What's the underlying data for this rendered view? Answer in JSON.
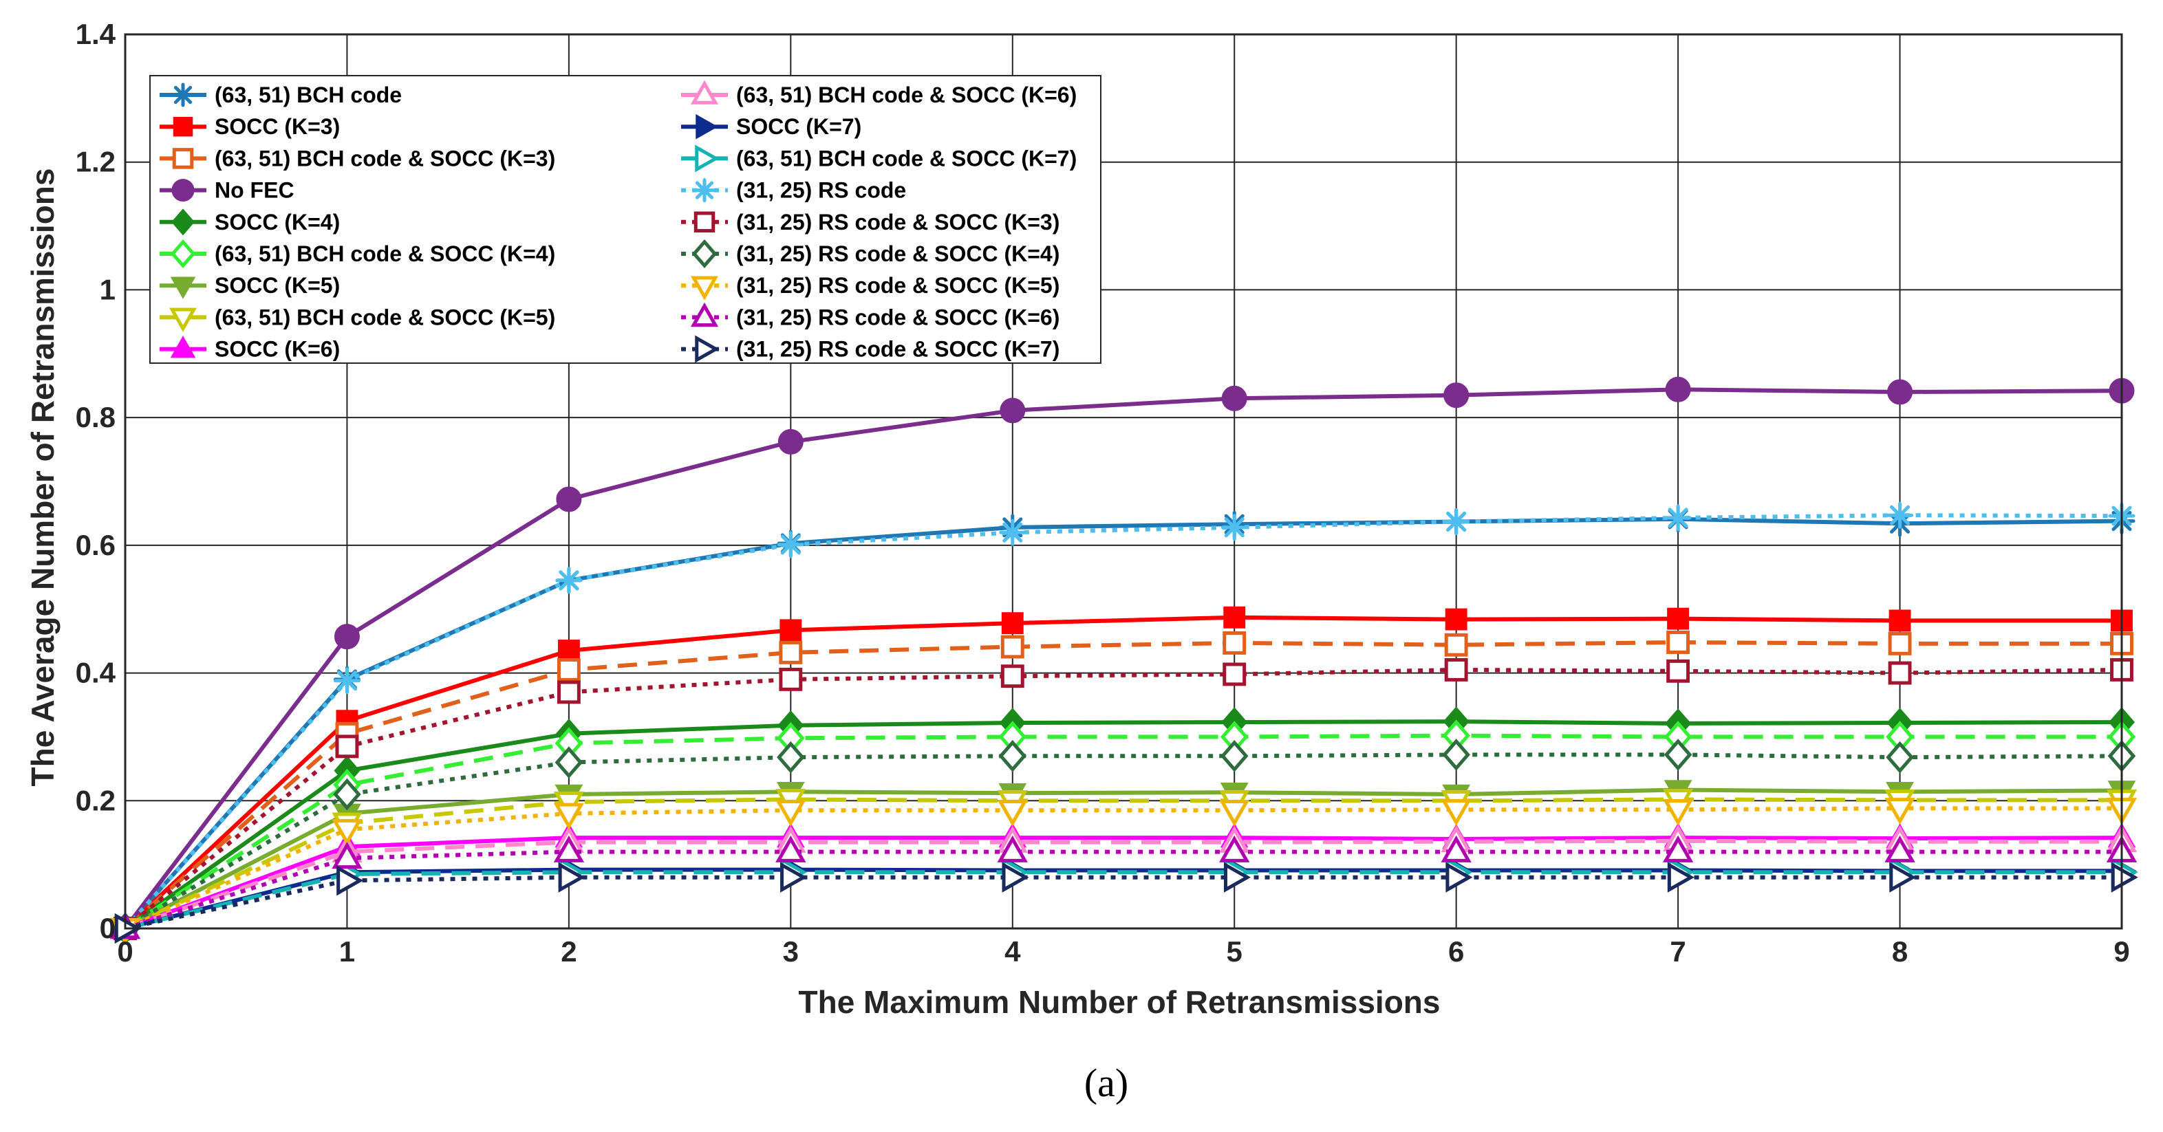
{
  "chart_data": {
    "type": "line",
    "caption": "(a)",
    "xlabel": "The Maximum Number of Retransmissions",
    "ylabel": "The Average Number of Retransmissions",
    "xlim": [
      0,
      9
    ],
    "ylim": [
      0,
      1.4
    ],
    "xticks": [
      0,
      1,
      2,
      3,
      4,
      5,
      6,
      7,
      8,
      9
    ],
    "yticks": [
      0,
      0.2,
      0.4,
      0.6,
      0.8,
      1,
      1.2,
      1.4
    ],
    "ytick_labels": [
      "0",
      "0.2",
      "0.4",
      "0.6",
      "0.8",
      "1",
      "1.2",
      "1.4"
    ],
    "grid": true,
    "legend_position": "top-left",
    "x": [
      0,
      1,
      2,
      3,
      4,
      5,
      6,
      7,
      8,
      9
    ],
    "series": [
      {
        "name": "(63, 51) BCH code",
        "color": "#1f77b4",
        "marker": "asterisk",
        "filled": true,
        "dash": "solid",
        "values": [
          0,
          0.39,
          0.545,
          0.603,
          0.628,
          0.633,
          0.637,
          0.641,
          0.634,
          0.638
        ]
      },
      {
        "name": "SOCC (K=3)",
        "color": "#ff0000",
        "marker": "square",
        "filled": true,
        "dash": "solid",
        "values": [
          0,
          0.325,
          0.435,
          0.467,
          0.478,
          0.487,
          0.484,
          0.485,
          0.482,
          0.482
        ]
      },
      {
        "name": "(63, 51) BCH code & SOCC (K=3)",
        "color": "#e0601c",
        "marker": "square",
        "filled": false,
        "dash": "dashed",
        "values": [
          0,
          0.305,
          0.405,
          0.432,
          0.441,
          0.447,
          0.444,
          0.448,
          0.446,
          0.446
        ]
      },
      {
        "name": "No FEC",
        "color": "#7b2d8e",
        "marker": "circle",
        "filled": true,
        "dash": "solid",
        "values": [
          0,
          0.457,
          0.672,
          0.762,
          0.811,
          0.83,
          0.835,
          0.844,
          0.84,
          0.842
        ]
      },
      {
        "name": "SOCC (K=4)",
        "color": "#1a8a1a",
        "marker": "diamond",
        "filled": true,
        "dash": "solid",
        "values": [
          0,
          0.247,
          0.305,
          0.318,
          0.322,
          0.323,
          0.324,
          0.321,
          0.322,
          0.323
        ]
      },
      {
        "name": "(63, 51) BCH code & SOCC (K=4)",
        "color": "#33ee33",
        "marker": "diamond",
        "filled": false,
        "dash": "dashed",
        "values": [
          0,
          0.225,
          0.29,
          0.298,
          0.3,
          0.3,
          0.302,
          0.3,
          0.3,
          0.3
        ]
      },
      {
        "name": "SOCC (K=5)",
        "color": "#77ac30",
        "marker": "triangle-down",
        "filled": true,
        "dash": "solid",
        "values": [
          0,
          0.18,
          0.21,
          0.214,
          0.212,
          0.213,
          0.21,
          0.217,
          0.214,
          0.216
        ]
      },
      {
        "name": "(63, 51) BCH code & SOCC (K=5)",
        "color": "#c8c800",
        "marker": "triangle-down",
        "filled": false,
        "dash": "dashed",
        "values": [
          0,
          0.165,
          0.198,
          0.202,
          0.2,
          0.2,
          0.2,
          0.202,
          0.201,
          0.201
        ]
      },
      {
        "name": "SOCC (K=6)",
        "color": "#ff00ff",
        "marker": "triangle-up",
        "filled": true,
        "dash": "solid",
        "values": [
          0,
          0.128,
          0.142,
          0.142,
          0.142,
          0.142,
          0.14,
          0.142,
          0.141,
          0.142
        ]
      },
      {
        "name": "(63, 51) BCH code & SOCC (K=6)",
        "color": "#ff88cc",
        "marker": "triangle-up",
        "filled": false,
        "dash": "dashed",
        "values": [
          0,
          0.12,
          0.135,
          0.135,
          0.135,
          0.135,
          0.136,
          0.137,
          0.136,
          0.136
        ]
      },
      {
        "name": "SOCC (K=7)",
        "color": "#0d2b8e",
        "marker": "triangle-right",
        "filled": true,
        "dash": "solid",
        "values": [
          0,
          0.088,
          0.092,
          0.092,
          0.091,
          0.091,
          0.091,
          0.091,
          0.09,
          0.09
        ]
      },
      {
        "name": "(63, 51) BCH code & SOCC (K=7)",
        "color": "#17b3b3",
        "marker": "triangle-right",
        "filled": false,
        "dash": "dashed",
        "values": [
          0,
          0.085,
          0.088,
          0.088,
          0.088,
          0.088,
          0.088,
          0.088,
          0.088,
          0.088
        ]
      },
      {
        "name": "(31, 25) RS code",
        "color": "#4dbeee",
        "marker": "asterisk",
        "filled": true,
        "dash": "dotted",
        "values": [
          0,
          0.388,
          0.545,
          0.601,
          0.62,
          0.628,
          0.637,
          0.643,
          0.647,
          0.646
        ]
      },
      {
        "name": "(31, 25) RS code & SOCC (K=3)",
        "color": "#a2142f",
        "marker": "square",
        "filled": false,
        "dash": "dotted",
        "values": [
          0,
          0.285,
          0.37,
          0.39,
          0.395,
          0.398,
          0.405,
          0.403,
          0.4,
          0.405
        ]
      },
      {
        "name": "(31, 25) RS code & SOCC (K=4)",
        "color": "#2e6b3e",
        "marker": "diamond",
        "filled": false,
        "dash": "dotted",
        "values": [
          0,
          0.21,
          0.26,
          0.268,
          0.27,
          0.27,
          0.272,
          0.272,
          0.268,
          0.27
        ]
      },
      {
        "name": "(31, 25) RS code & SOCC (K=5)",
        "color": "#f0b400",
        "marker": "triangle-down",
        "filled": false,
        "dash": "dotted",
        "values": [
          0,
          0.155,
          0.18,
          0.185,
          0.185,
          0.185,
          0.186,
          0.186,
          0.188,
          0.188
        ]
      },
      {
        "name": "(31, 25) RS code & SOCC (K=6)",
        "color": "#b000b0",
        "marker": "triangle-up",
        "filled": false,
        "dash": "dotted",
        "values": [
          0,
          0.11,
          0.12,
          0.12,
          0.12,
          0.12,
          0.12,
          0.12,
          0.12,
          0.12
        ]
      },
      {
        "name": "(31, 25) RS code & SOCC (K=7)",
        "color": "#1b2a5e",
        "marker": "triangle-right",
        "filled": false,
        "dash": "dotted",
        "values": [
          0,
          0.075,
          0.08,
          0.08,
          0.08,
          0.08,
          0.08,
          0.08,
          0.08,
          0.08
        ]
      }
    ]
  }
}
